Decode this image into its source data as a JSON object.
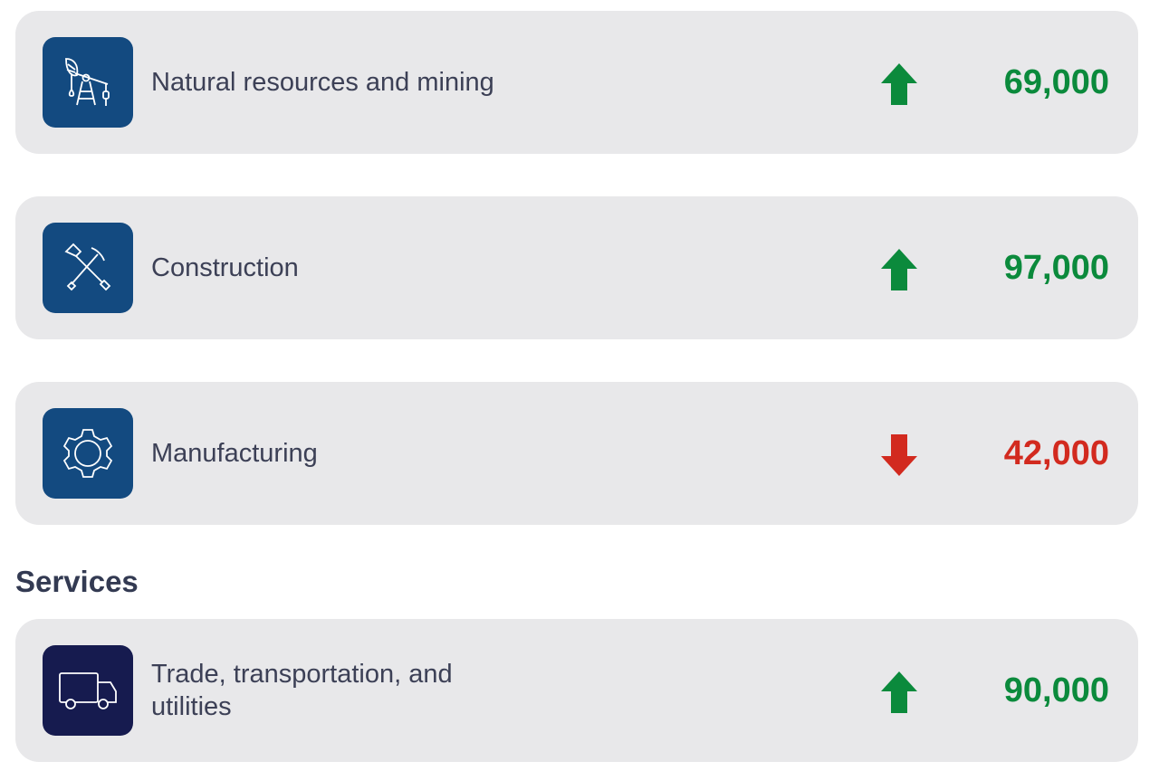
{
  "colors": {
    "up": "#0b8a3c",
    "down": "#d22a1f",
    "icon_bg": "#134a80",
    "icon_bg_dark": "#161b4f"
  },
  "rows": [
    {
      "icon": "oil-pump-icon",
      "label": "Natural resources and mining",
      "trend": "up",
      "value": "69,000"
    },
    {
      "icon": "shovel-pickaxe-icon",
      "label": "Construction",
      "trend": "up",
      "value": "97,000"
    },
    {
      "icon": "gear-icon",
      "label": "Manufacturing",
      "trend": "down",
      "value": "42,000"
    }
  ],
  "services": {
    "heading": "Services",
    "rows": [
      {
        "icon": "truck-icon",
        "label": "Trade, transportation, and utilities",
        "trend": "up",
        "value": "90,000"
      }
    ]
  }
}
